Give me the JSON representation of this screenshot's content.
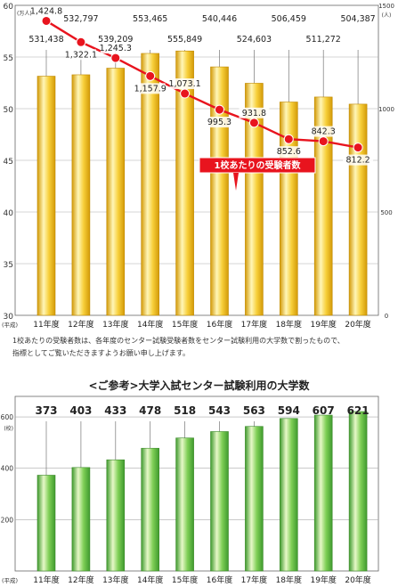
{
  "chart_data": [
    {
      "type": "bar+line",
      "categories": [
        "11年度",
        "12年度",
        "13年度",
        "14年度",
        "15年度",
        "16年度",
        "17年度",
        "18年度",
        "19年度",
        "20年度"
      ],
      "x_prefix": "(平成)",
      "bars": {
        "values": [
          531438,
          532797,
          539209,
          553465,
          555849,
          540446,
          524603,
          506459,
          511272,
          504387
        ],
        "value_labels": [
          "531,438",
          "532,797",
          "539,209",
          "553,465",
          "555,849",
          "540,446",
          "524,603",
          "506,459",
          "511,272",
          "504,387"
        ],
        "color": "#f4c020"
      },
      "line": {
        "values": [
          1424.8,
          1322.1,
          1245.3,
          1157.9,
          1073.1,
          995.3,
          931.8,
          852.6,
          842.3,
          812.2
        ],
        "value_labels": [
          "1,424.8",
          "1,322.1",
          "1,245.3",
          "1,157.9",
          "1,073.1",
          "995.3",
          "931.8",
          "852.6",
          "842.3",
          "812.2"
        ],
        "color": "#e8141e",
        "callout": "1校あたりの受験者数"
      },
      "left_axis": {
        "unit": "(万人)",
        "ylim": [
          30,
          60
        ],
        "ticks": [
          "30",
          "35",
          "40",
          "45",
          "50",
          "55",
          "60"
        ]
      },
      "right_axis": {
        "unit": "(人)",
        "ylim": [
          0,
          1500
        ],
        "ticks": [
          "0",
          "500",
          "1000",
          "1500"
        ]
      },
      "grid": true
    },
    {
      "type": "bar",
      "title": "<ご参考>大学入試センター試験利用の大学数",
      "categories": [
        "11年度",
        "12年度",
        "13年度",
        "14年度",
        "15年度",
        "16年度",
        "17年度",
        "18年度",
        "19年度",
        "20年度"
      ],
      "x_prefix": "(平成)",
      "values": [
        373,
        403,
        433,
        478,
        518,
        543,
        563,
        594,
        607,
        621
      ],
      "value_labels": [
        "373",
        "403",
        "433",
        "478",
        "518",
        "543",
        "563",
        "594",
        "607",
        "621"
      ],
      "y_axis": {
        "unit": "(校)",
        "ylim": [
          0,
          680
        ],
        "ticks": [
          "200",
          "400",
          "600"
        ]
      },
      "color": "#6cc04a",
      "grid": true
    }
  ],
  "note": {
    "line1": "1校あたりの受験者数は、各年度のセンター試験受験者数をセンター試験利用の大学数で割ったもので、",
    "line2": "指標としてご覧いただきますようお願い申し上げます。"
  }
}
